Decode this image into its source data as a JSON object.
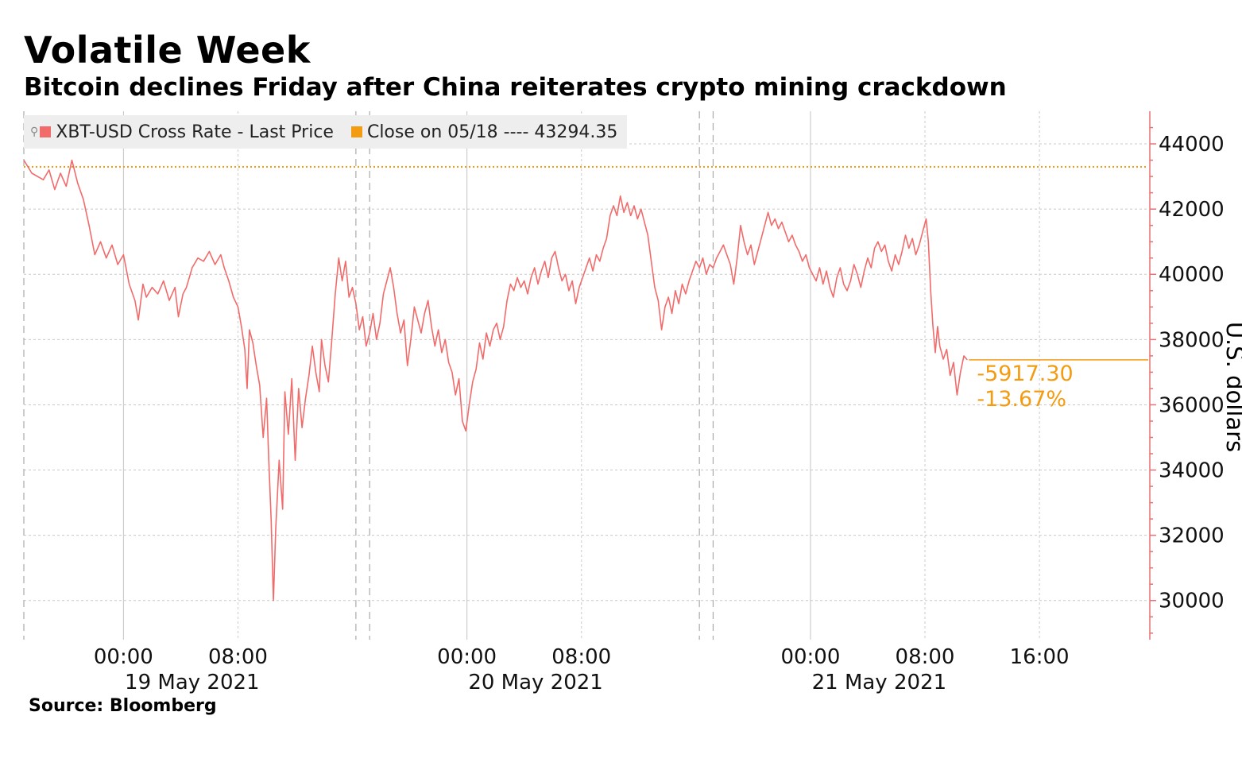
{
  "title": "Volatile Week",
  "subtitle": "Bitcoin declines Friday after China reiterates crypto mining crackdown",
  "source": "Source: Bloomberg",
  "chart_data": {
    "type": "line",
    "ylabel": "U.S. dollars",
    "ylim": [
      28800,
      45000
    ],
    "yticks": [
      30000,
      32000,
      34000,
      36000,
      38000,
      40000,
      42000,
      44000
    ],
    "ytick_labels": [
      "30000",
      "32000",
      "34000",
      "36000",
      "38000",
      "40000",
      "42000",
      "44000"
    ],
    "xlim_hours": [
      -8.7,
      89.5
    ],
    "xticks": [
      {
        "hours": 0,
        "label": "00:00"
      },
      {
        "hours": 10,
        "label": "08:00"
      },
      {
        "hours": 30,
        "label": "00:00"
      },
      {
        "hours": 40,
        "label": "08:00"
      },
      {
        "hours": 60,
        "label": "00:00"
      },
      {
        "hours": 70,
        "label": "08:00"
      },
      {
        "hours": 80,
        "label": "16:00"
      }
    ],
    "date_labels": [
      {
        "hours": 6,
        "label": "19 May 2021"
      },
      {
        "hours": 36,
        "label": "20 May 2021"
      },
      {
        "hours": 66,
        "label": "21 May 2021"
      }
    ],
    "session_breaks_hours": [
      -8.7,
      20.3,
      21.5,
      50.3,
      51.5
    ],
    "legend": [
      {
        "label": "XBT-USD Cross Rate - Last Price",
        "color": "#f26b6b"
      },
      {
        "label": "Close on 05/18 ---- 43294.35",
        "color": "#f39c12"
      }
    ],
    "legend_position": "top-left",
    "grid": true,
    "reference_line": {
      "name": "Close on 05/18",
      "value": 43294.35,
      "color": "#f39c12"
    },
    "last_value_line": {
      "value": 37377,
      "color": "#f39c12"
    },
    "annotations": [
      "-5917.30",
      "-13.67%"
    ],
    "series": [
      {
        "name": "XBT-USD Cross Rate - Last Price",
        "color": "#f26b6b",
        "points": [
          [
            -8.7,
            43500
          ],
          [
            -8.0,
            43100
          ],
          [
            -7.0,
            42900
          ],
          [
            -6.5,
            43200
          ],
          [
            -6.0,
            42600
          ],
          [
            -5.5,
            43100
          ],
          [
            -5.0,
            42700
          ],
          [
            -4.5,
            43500
          ],
          [
            -4.0,
            42800
          ],
          [
            -3.5,
            42300
          ],
          [
            -3.0,
            41500
          ],
          [
            -2.5,
            40600
          ],
          [
            -2.0,
            41000
          ],
          [
            -1.5,
            40500
          ],
          [
            -1.0,
            40900
          ],
          [
            -0.5,
            40300
          ],
          [
            0.0,
            40600
          ],
          [
            0.5,
            39700
          ],
          [
            1.0,
            39200
          ],
          [
            1.3,
            38600
          ],
          [
            1.7,
            39700
          ],
          [
            2.0,
            39300
          ],
          [
            2.5,
            39600
          ],
          [
            3.0,
            39400
          ],
          [
            3.5,
            39800
          ],
          [
            4.0,
            39200
          ],
          [
            4.5,
            39600
          ],
          [
            4.8,
            38700
          ],
          [
            5.2,
            39400
          ],
          [
            5.5,
            39600
          ],
          [
            6.0,
            40200
          ],
          [
            6.5,
            40500
          ],
          [
            7.0,
            40400
          ],
          [
            7.5,
            40700
          ],
          [
            8.0,
            40300
          ],
          [
            8.5,
            40600
          ],
          [
            8.8,
            40200
          ],
          [
            9.2,
            39800
          ],
          [
            9.6,
            39300
          ],
          [
            10.0,
            39000
          ],
          [
            10.3,
            38400
          ],
          [
            10.6,
            37700
          ],
          [
            10.8,
            36500
          ],
          [
            11.0,
            38300
          ],
          [
            11.3,
            37900
          ],
          [
            11.6,
            37200
          ],
          [
            11.9,
            36600
          ],
          [
            12.2,
            35000
          ],
          [
            12.5,
            36200
          ],
          [
            12.7,
            34200
          ],
          [
            12.9,
            32500
          ],
          [
            13.1,
            30000
          ],
          [
            13.3,
            32200
          ],
          [
            13.6,
            34300
          ],
          [
            13.9,
            32800
          ],
          [
            14.1,
            36400
          ],
          [
            14.4,
            35100
          ],
          [
            14.7,
            36800
          ],
          [
            15.0,
            34300
          ],
          [
            15.3,
            36500
          ],
          [
            15.6,
            35300
          ],
          [
            15.9,
            36200
          ],
          [
            16.2,
            36900
          ],
          [
            16.5,
            37800
          ],
          [
            16.8,
            37000
          ],
          [
            17.1,
            36400
          ],
          [
            17.3,
            38000
          ],
          [
            17.6,
            37200
          ],
          [
            17.9,
            36700
          ],
          [
            18.2,
            38000
          ],
          [
            18.5,
            39400
          ],
          [
            18.8,
            40500
          ],
          [
            19.1,
            39800
          ],
          [
            19.4,
            40400
          ],
          [
            19.7,
            39300
          ],
          [
            20.0,
            39600
          ],
          [
            20.3,
            39100
          ],
          [
            20.6,
            38300
          ],
          [
            20.9,
            38700
          ],
          [
            21.2,
            37800
          ],
          [
            21.5,
            38200
          ],
          [
            21.8,
            38800
          ],
          [
            22.1,
            38000
          ],
          [
            22.4,
            38500
          ],
          [
            22.7,
            39400
          ],
          [
            23.0,
            39800
          ],
          [
            23.3,
            40200
          ],
          [
            23.6,
            39600
          ],
          [
            23.9,
            38800
          ],
          [
            24.2,
            38200
          ],
          [
            24.5,
            38600
          ],
          [
            24.8,
            37200
          ],
          [
            25.1,
            38000
          ],
          [
            25.4,
            39000
          ],
          [
            25.7,
            38600
          ],
          [
            26.0,
            38200
          ],
          [
            26.3,
            38800
          ],
          [
            26.6,
            39200
          ],
          [
            26.9,
            38400
          ],
          [
            27.2,
            37800
          ],
          [
            27.5,
            38300
          ],
          [
            27.8,
            37600
          ],
          [
            28.1,
            38000
          ],
          [
            28.4,
            37300
          ],
          [
            28.7,
            37000
          ],
          [
            29.0,
            36300
          ],
          [
            29.3,
            36800
          ],
          [
            29.6,
            35500
          ],
          [
            29.9,
            35200
          ],
          [
            30.2,
            36000
          ],
          [
            30.5,
            36700
          ],
          [
            30.8,
            37100
          ],
          [
            31.1,
            37900
          ],
          [
            31.4,
            37400
          ],
          [
            31.7,
            38200
          ],
          [
            32.0,
            37800
          ],
          [
            32.3,
            38300
          ],
          [
            32.6,
            38500
          ],
          [
            32.9,
            38000
          ],
          [
            33.2,
            38400
          ],
          [
            33.5,
            39200
          ],
          [
            33.8,
            39700
          ],
          [
            34.1,
            39500
          ],
          [
            34.4,
            39900
          ],
          [
            34.7,
            39600
          ],
          [
            35.0,
            39800
          ],
          [
            35.3,
            39400
          ],
          [
            35.6,
            39900
          ],
          [
            35.9,
            40200
          ],
          [
            36.2,
            39700
          ],
          [
            36.5,
            40100
          ],
          [
            36.8,
            40400
          ],
          [
            37.1,
            39900
          ],
          [
            37.4,
            40500
          ],
          [
            37.7,
            40700
          ],
          [
            38.0,
            40200
          ],
          [
            38.3,
            39800
          ],
          [
            38.6,
            40000
          ],
          [
            38.9,
            39500
          ],
          [
            39.2,
            39800
          ],
          [
            39.5,
            39100
          ],
          [
            39.8,
            39600
          ],
          [
            40.1,
            39900
          ],
          [
            40.4,
            40200
          ],
          [
            40.7,
            40500
          ],
          [
            41.0,
            40100
          ],
          [
            41.3,
            40600
          ],
          [
            41.6,
            40400
          ],
          [
            41.9,
            40800
          ],
          [
            42.2,
            41100
          ],
          [
            42.5,
            41800
          ],
          [
            42.8,
            42100
          ],
          [
            43.1,
            41800
          ],
          [
            43.4,
            42400
          ],
          [
            43.7,
            41900
          ],
          [
            44.0,
            42200
          ],
          [
            44.3,
            41800
          ],
          [
            44.6,
            42100
          ],
          [
            44.9,
            41700
          ],
          [
            45.2,
            42000
          ],
          [
            45.5,
            41600
          ],
          [
            45.8,
            41200
          ],
          [
            46.1,
            40400
          ],
          [
            46.4,
            39600
          ],
          [
            46.7,
            39200
          ],
          [
            47.0,
            38300
          ],
          [
            47.3,
            39000
          ],
          [
            47.6,
            39300
          ],
          [
            47.9,
            38800
          ],
          [
            48.2,
            39500
          ],
          [
            48.5,
            39100
          ],
          [
            48.8,
            39700
          ],
          [
            49.1,
            39400
          ],
          [
            49.4,
            39800
          ],
          [
            49.7,
            40100
          ],
          [
            50.0,
            40400
          ],
          [
            50.3,
            40200
          ],
          [
            50.6,
            40500
          ],
          [
            50.9,
            40000
          ],
          [
            51.2,
            40300
          ],
          [
            51.5,
            40200
          ],
          [
            51.8,
            40500
          ],
          [
            52.1,
            40700
          ],
          [
            52.4,
            40900
          ],
          [
            52.7,
            40600
          ],
          [
            53.0,
            40300
          ],
          [
            53.3,
            39700
          ],
          [
            53.6,
            40500
          ],
          [
            53.9,
            41500
          ],
          [
            54.2,
            41000
          ],
          [
            54.5,
            40600
          ],
          [
            54.8,
            40900
          ],
          [
            55.1,
            40300
          ],
          [
            55.4,
            40700
          ],
          [
            55.7,
            41100
          ],
          [
            56.0,
            41500
          ],
          [
            56.3,
            41900
          ],
          [
            56.6,
            41500
          ],
          [
            56.9,
            41700
          ],
          [
            57.2,
            41400
          ],
          [
            57.5,
            41600
          ],
          [
            57.8,
            41300
          ],
          [
            58.1,
            41000
          ],
          [
            58.4,
            41200
          ],
          [
            58.7,
            40900
          ],
          [
            59.0,
            40700
          ],
          [
            59.3,
            40400
          ],
          [
            59.6,
            40600
          ],
          [
            59.9,
            40200
          ],
          [
            60.2,
            40000
          ],
          [
            60.5,
            39800
          ],
          [
            60.8,
            40200
          ],
          [
            61.1,
            39700
          ],
          [
            61.4,
            40100
          ],
          [
            61.7,
            39600
          ],
          [
            62.0,
            39300
          ],
          [
            62.3,
            39900
          ],
          [
            62.6,
            40200
          ],
          [
            62.9,
            39700
          ],
          [
            63.2,
            39500
          ],
          [
            63.5,
            39800
          ],
          [
            63.8,
            40300
          ],
          [
            64.1,
            40000
          ],
          [
            64.4,
            39600
          ],
          [
            64.7,
            40100
          ],
          [
            65.0,
            40500
          ],
          [
            65.3,
            40200
          ],
          [
            65.6,
            40800
          ],
          [
            65.9,
            41000
          ],
          [
            66.2,
            40700
          ],
          [
            66.5,
            40900
          ],
          [
            66.8,
            40400
          ],
          [
            67.1,
            40100
          ],
          [
            67.4,
            40600
          ],
          [
            67.7,
            40300
          ],
          [
            68.0,
            40700
          ],
          [
            68.3,
            41200
          ],
          [
            68.6,
            40800
          ],
          [
            68.9,
            41100
          ],
          [
            69.2,
            40600
          ],
          [
            69.5,
            40900
          ],
          [
            69.8,
            41300
          ],
          [
            70.1,
            41700
          ],
          [
            70.3,
            41000
          ],
          [
            70.5,
            39500
          ],
          [
            70.7,
            38400
          ],
          [
            70.9,
            37600
          ],
          [
            71.1,
            38400
          ],
          [
            71.3,
            37800
          ],
          [
            71.6,
            37400
          ],
          [
            71.9,
            37700
          ],
          [
            72.2,
            36900
          ],
          [
            72.5,
            37300
          ],
          [
            72.8,
            36300
          ],
          [
            73.1,
            37000
          ],
          [
            73.4,
            37500
          ],
          [
            73.7,
            37377
          ]
        ]
      }
    ]
  }
}
